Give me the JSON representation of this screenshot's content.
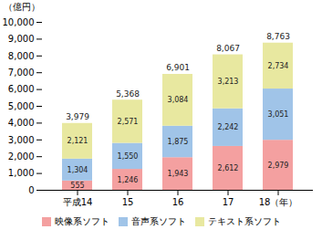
{
  "chart_data": {
    "type": "bar",
    "stacked": true,
    "categories": [
      "平成14",
      "15",
      "16",
      "17",
      "18（年）"
    ],
    "series": [
      {
        "name": "映像系ソフト",
        "color": "#f4a0a0",
        "values": [
          555,
          1246,
          1943,
          2612,
          2979
        ],
        "value_labels": [
          "555",
          "1,246",
          "1,943",
          "2,612",
          "2,979"
        ]
      },
      {
        "name": "音声系ソフト",
        "color": "#a0c4e8",
        "values": [
          1304,
          1550,
          1875,
          2242,
          3051
        ],
        "value_labels": [
          "1,304",
          "1,550",
          "1,875",
          "2,242",
          "3,051"
        ]
      },
      {
        "name": "テキスト系ソフト",
        "color": "#e8e8a0",
        "values": [
          2121,
          2571,
          3084,
          3213,
          2734
        ],
        "value_labels": [
          "2,121",
          "2,571",
          "3,084",
          "3,213",
          "2,734"
        ]
      }
    ],
    "totals": [
      3979,
      5368,
      6901,
      8067,
      8763
    ],
    "total_labels": [
      "3,979",
      "5,368",
      "6,901",
      "8,067",
      "8,763"
    ],
    "ylabel": "（億円）",
    "ylim": [
      0,
      10000
    ],
    "yticks": [
      0,
      {
        "value": 1000,
        "label": "1,000"
      },
      {
        "value": 2000,
        "label": "2,000"
      },
      {
        "value": 3000,
        "label": "3,000"
      },
      {
        "value": 4000,
        "label": "4,000"
      },
      {
        "value": 5000,
        "label": "5,000"
      },
      {
        "value": 6000,
        "label": "6,000"
      },
      {
        "value": 7000,
        "label": "7,000"
      },
      {
        "value": 8000,
        "label": "8,000"
      },
      {
        "value": 9000,
        "label": "9,000"
      },
      {
        "value": 10000,
        "label": "10,000"
      }
    ],
    "data_labels": true,
    "grid": false,
    "legend": "bottom"
  }
}
